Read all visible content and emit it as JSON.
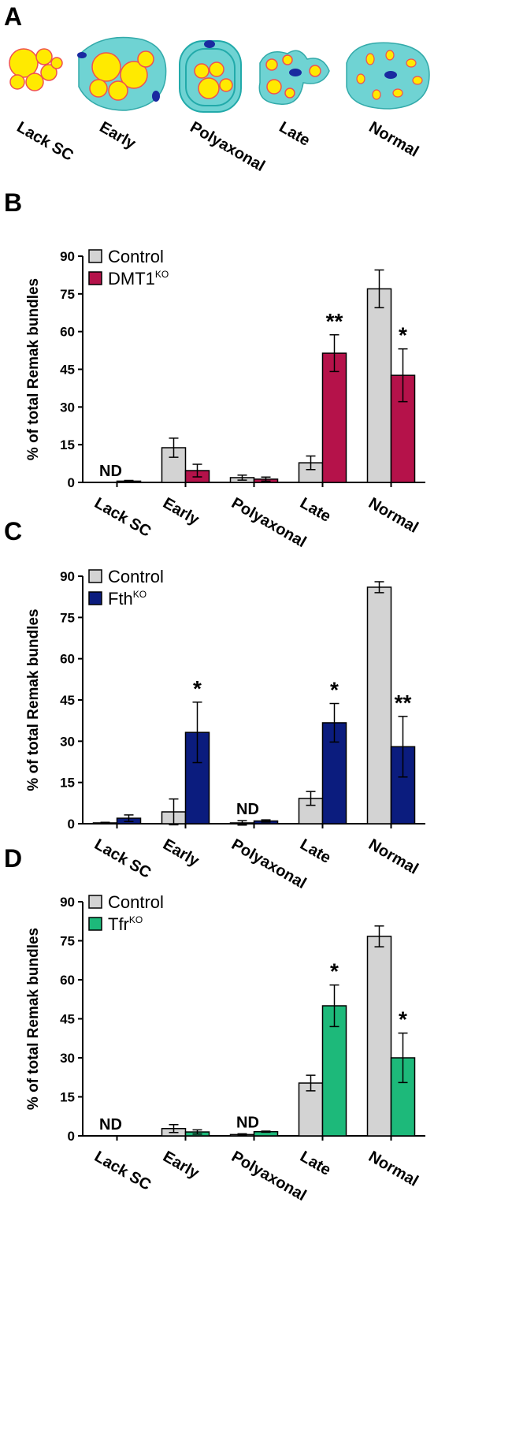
{
  "diagram": {
    "panel_label": "A",
    "labels": [
      "Lack SC",
      "Early",
      "Polyaxonal",
      "Late",
      "Normal"
    ]
  },
  "chart_data": [
    {
      "type": "bar",
      "panel_label": "B",
      "ylabel": "% of total Remak bundles",
      "categories": [
        "Lack SC",
        "Early",
        "Polyaxonal",
        "Late",
        "Normal"
      ],
      "ylim": [
        0,
        90
      ],
      "yticks": [
        0,
        15,
        30,
        45,
        60,
        75,
        90
      ],
      "series": [
        {
          "name": "Control",
          "color": "#d3d3d3",
          "values": [
            0,
            13.8,
            1.9,
            7.8,
            77
          ],
          "errors": [
            0,
            3.8,
            1,
            2.7,
            7.5
          ],
          "annotations": [
            "ND",
            null,
            null,
            null,
            null
          ]
        },
        {
          "name": "DMT1",
          "name_sup": "KO",
          "color": "#b5124a",
          "values": [
            0.5,
            4.7,
            1.3,
            51.4,
            42.6
          ],
          "errors": [
            0.3,
            2.5,
            0.8,
            7.3,
            10.5
          ],
          "annotations": [
            null,
            null,
            null,
            "**",
            "*"
          ]
        }
      ]
    },
    {
      "type": "bar",
      "panel_label": "C",
      "ylabel": "% of total Remak bundles",
      "categories": [
        "Lack SC",
        "Early",
        "Polyaxonal",
        "Late",
        "Normal"
      ],
      "ylim": [
        0,
        90
      ],
      "yticks": [
        0,
        15,
        30,
        45,
        60,
        75,
        90
      ],
      "series": [
        {
          "name": "Control",
          "color": "#d3d3d3",
          "values": [
            0.3,
            4.3,
            0.3,
            9.2,
            86
          ],
          "errors": [
            0.2,
            4.7,
            0.8,
            2.5,
            2
          ],
          "annotations": [
            null,
            null,
            "ND",
            null,
            null
          ]
        },
        {
          "name": "Fth",
          "name_sup": "KO",
          "color": "#0b1c7e",
          "values": [
            2,
            33.2,
            1,
            36.7,
            28
          ],
          "errors": [
            1.2,
            11,
            0.4,
            7,
            11
          ],
          "annotations": [
            null,
            "*",
            null,
            "*",
            "**"
          ]
        }
      ]
    },
    {
      "type": "bar",
      "panel_label": "D",
      "ylabel": "% of total Remak bundles",
      "categories": [
        "Lack SC",
        "Early",
        "Polyaxonal",
        "Late",
        "Normal"
      ],
      "ylim": [
        0,
        90
      ],
      "yticks": [
        0,
        15,
        30,
        45,
        60,
        75,
        90
      ],
      "series": [
        {
          "name": "Control",
          "color": "#d3d3d3",
          "values": [
            0,
            2.8,
            0.5,
            20.3,
            76.7
          ],
          "errors": [
            0,
            1.5,
            0.3,
            3,
            4
          ],
          "annotations": [
            "ND",
            null,
            "ND",
            null,
            null
          ]
        },
        {
          "name": "Tfr",
          "name_sup": "KO",
          "color": "#1db97a",
          "values": [
            0,
            1.5,
            1.6,
            50,
            30
          ],
          "errors": [
            0,
            0.8,
            0.2,
            8,
            9.5
          ],
          "annotations": [
            null,
            null,
            null,
            "*",
            "*"
          ]
        }
      ]
    }
  ]
}
